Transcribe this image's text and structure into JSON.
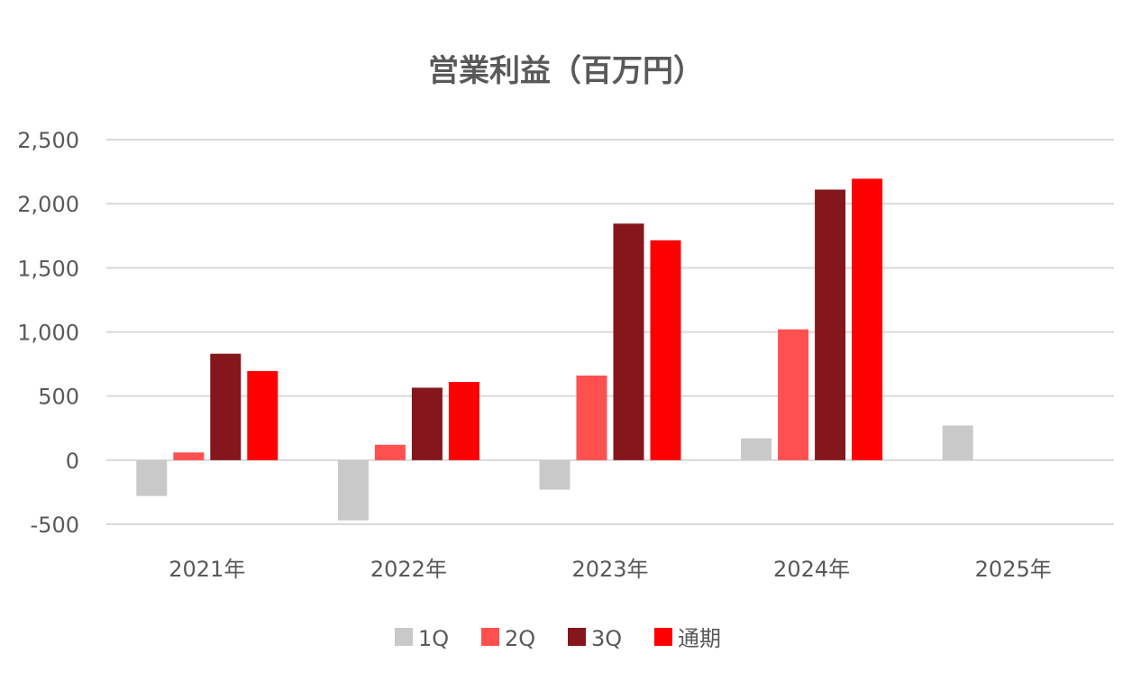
{
  "chart_data": {
    "type": "bar",
    "title": "営業利益（百万円）",
    "xlabel": "",
    "ylabel": "",
    "categories": [
      "2021年",
      "2022年",
      "2023年",
      "2024年",
      "2025年"
    ],
    "ylim": [
      -500,
      2500
    ],
    "yticks": [
      {
        "value": 2500,
        "label": "2,500"
      },
      {
        "value": 2000,
        "label": "2,000"
      },
      {
        "value": 1500,
        "label": "1,500"
      },
      {
        "value": 1000,
        "label": "1,000"
      },
      {
        "value": 500,
        "label": "500"
      },
      {
        "value": 0,
        "label": "0"
      },
      {
        "value": -500,
        "label": "-500",
        "color": "#ff0000"
      }
    ],
    "grid": true,
    "legend_position": "bottom",
    "series": [
      {
        "name": "1Q",
        "color": "#c9c9c9",
        "values": [
          -280,
          -470,
          -230,
          170,
          270
        ]
      },
      {
        "name": "2Q",
        "color": "#ff5050",
        "values": [
          60,
          120,
          660,
          1020,
          null
        ]
      },
      {
        "name": "3Q",
        "color": "#85161c",
        "values": [
          830,
          565,
          1845,
          2110,
          null
        ]
      },
      {
        "name": "通期",
        "color": "#ff0000",
        "values": [
          695,
          610,
          1715,
          2195,
          null
        ]
      }
    ]
  }
}
